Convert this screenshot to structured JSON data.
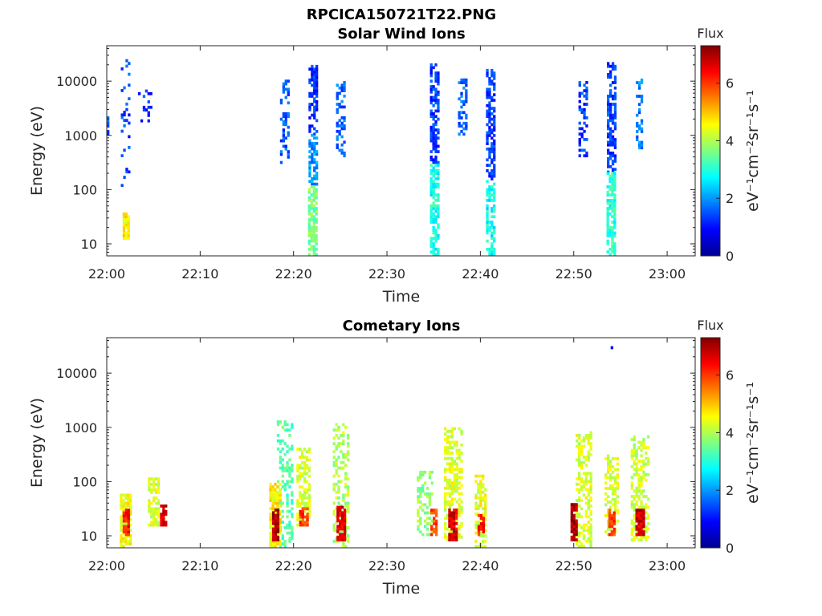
{
  "figure_title": "RPCICA150721T22.PNG",
  "chart_data": [
    {
      "type": "heatmap",
      "title": "Solar Wind Ions",
      "xlabel": "Time",
      "ylabel": "Energy (eV)",
      "x_ticks": [
        "22:00",
        "22:10",
        "22:20",
        "22:30",
        "22:40",
        "22:50",
        "23:00"
      ],
      "x_range": [
        "22:00",
        "23:03"
      ],
      "y_scale": "log",
      "y_ticks": [
        10,
        100,
        1000,
        10000
      ],
      "y_tick_labels": [
        "10",
        "100",
        "1000",
        "10000"
      ],
      "y_range": [
        6,
        45000
      ],
      "colorbar": {
        "title": "Flux",
        "label": "eV⁻¹cm⁻²sr⁻¹s⁻¹",
        "range": [
          0,
          7.3
        ],
        "ticks": [
          "0",
          "2",
          "4",
          "6"
        ],
        "colormap": "jet"
      },
      "blobs": [
        {
          "t": "22:02",
          "w": 0.6,
          "emin": 12,
          "emax": 35,
          "flux": 4.6,
          "p": 0.9
        },
        {
          "t": "22:00",
          "w": 0.3,
          "emin": 1000,
          "emax": 2500,
          "flux": 1.6,
          "p": 0.5
        },
        {
          "t": "22:02",
          "w": 1.0,
          "emin": 90,
          "emax": 25000,
          "flux": 1.4,
          "p": 0.2
        },
        {
          "t": "22:04",
          "w": 1.3,
          "emin": 1400,
          "emax": 7000,
          "flux": 1.3,
          "p": 0.12
        },
        {
          "t": "22:19",
          "w": 0.9,
          "emin": 300,
          "emax": 10000,
          "flux": 1.5,
          "p": 0.35
        },
        {
          "t": "22:22",
          "w": 0.8,
          "emin": 1000,
          "emax": 18000,
          "flux": 1.2,
          "p": 0.6
        },
        {
          "t": "22:22",
          "w": 0.8,
          "emin": 120,
          "emax": 1000,
          "flux": 2.0,
          "p": 0.65
        },
        {
          "t": "22:22",
          "w": 0.9,
          "emin": 6,
          "emax": 110,
          "flux": 3.6,
          "p": 0.75
        },
        {
          "t": "22:25",
          "w": 0.9,
          "emin": 400,
          "emax": 9000,
          "flux": 1.6,
          "p": 0.4
        },
        {
          "t": "22:35",
          "w": 0.8,
          "emin": 300,
          "emax": 20000,
          "flux": 1.3,
          "p": 0.65
        },
        {
          "t": "22:35",
          "w": 0.8,
          "emin": 6,
          "emax": 300,
          "flux": 2.9,
          "p": 0.7
        },
        {
          "t": "22:38",
          "w": 0.8,
          "emin": 1000,
          "emax": 10000,
          "flux": 1.6,
          "p": 0.45
        },
        {
          "t": "22:41",
          "w": 0.8,
          "emin": 150,
          "emax": 15000,
          "flux": 1.3,
          "p": 0.6
        },
        {
          "t": "22:41",
          "w": 0.8,
          "emin": 6,
          "emax": 150,
          "flux": 2.8,
          "p": 0.6
        },
        {
          "t": "22:51",
          "w": 1.0,
          "emin": 400,
          "emax": 10000,
          "flux": 1.3,
          "p": 0.4
        },
        {
          "t": "22:54",
          "w": 0.9,
          "emin": 200,
          "emax": 20000,
          "flux": 1.3,
          "p": 0.65
        },
        {
          "t": "22:54",
          "w": 1.0,
          "emin": 6,
          "emax": 200,
          "flux": 3.0,
          "p": 0.7
        },
        {
          "t": "22:57",
          "w": 0.7,
          "emin": 500,
          "emax": 10000,
          "flux": 1.8,
          "p": 0.45
        }
      ]
    },
    {
      "type": "heatmap",
      "title": "Cometary Ions",
      "xlabel": "Time",
      "ylabel": "Energy (eV)",
      "x_ticks": [
        "22:00",
        "22:10",
        "22:20",
        "22:30",
        "22:40",
        "22:50",
        "23:00"
      ],
      "x_range": [
        "22:00",
        "23:03"
      ],
      "y_scale": "log",
      "y_ticks": [
        10,
        100,
        1000,
        10000
      ],
      "y_tick_labels": [
        "10",
        "100",
        "1000",
        "10000"
      ],
      "y_range": [
        6,
        45000
      ],
      "colorbar": {
        "title": "Flux",
        "label": "eV⁻¹cm⁻²sr⁻¹s⁻¹",
        "range": [
          0,
          7.3
        ],
        "ticks": [
          "0",
          "2",
          "4",
          "6"
        ],
        "colormap": "jet"
      },
      "blobs": [
        {
          "t": "22:02",
          "w": 1.2,
          "emin": 6,
          "emax": 60,
          "flux": 4.5,
          "p": 0.8
        },
        {
          "t": "22:02",
          "w": 0.6,
          "emin": 10,
          "emax": 30,
          "flux": 6.3,
          "p": 0.8
        },
        {
          "t": "22:05",
          "w": 1.2,
          "emin": 15,
          "emax": 130,
          "flux": 4.3,
          "p": 0.7
        },
        {
          "t": "22:06",
          "w": 0.6,
          "emin": 15,
          "emax": 35,
          "flux": 6.6,
          "p": 0.85
        },
        {
          "t": "22:19",
          "w": 1.6,
          "emin": 6,
          "emax": 1200,
          "flux": 3.3,
          "p": 0.35
        },
        {
          "t": "22:18",
          "w": 1.2,
          "emin": 6,
          "emax": 90,
          "flux": 4.6,
          "p": 0.85
        },
        {
          "t": "22:18",
          "w": 0.6,
          "emin": 8,
          "emax": 30,
          "flux": 7.0,
          "p": 0.9
        },
        {
          "t": "22:21",
          "w": 1.4,
          "emin": 15,
          "emax": 400,
          "flux": 4.3,
          "p": 0.5
        },
        {
          "t": "22:21",
          "w": 0.8,
          "emin": 15,
          "emax": 30,
          "flux": 6.0,
          "p": 0.8
        },
        {
          "t": "22:25",
          "w": 1.6,
          "emin": 6,
          "emax": 1100,
          "flux": 4.0,
          "p": 0.45
        },
        {
          "t": "22:25",
          "w": 0.8,
          "emin": 8,
          "emax": 35,
          "flux": 6.6,
          "p": 0.85
        },
        {
          "t": "22:34",
          "w": 1.6,
          "emin": 10,
          "emax": 150,
          "flux": 3.8,
          "p": 0.45
        },
        {
          "t": "22:35",
          "w": 0.7,
          "emin": 10,
          "emax": 30,
          "flux": 5.9,
          "p": 0.75
        },
        {
          "t": "22:37",
          "w": 1.8,
          "emin": 8,
          "emax": 900,
          "flux": 4.3,
          "p": 0.5
        },
        {
          "t": "22:37",
          "w": 0.9,
          "emin": 8,
          "emax": 30,
          "flux": 6.6,
          "p": 0.9
        },
        {
          "t": "22:40",
          "w": 1.2,
          "emin": 6,
          "emax": 120,
          "flux": 4.4,
          "p": 0.55
        },
        {
          "t": "22:40",
          "w": 0.6,
          "emin": 10,
          "emax": 25,
          "flux": 6.2,
          "p": 0.8
        },
        {
          "t": "22:51",
          "w": 1.6,
          "emin": 6,
          "emax": 800,
          "flux": 4.3,
          "p": 0.45
        },
        {
          "t": "22:50",
          "w": 0.7,
          "emin": 8,
          "emax": 40,
          "flux": 7.0,
          "p": 0.85
        },
        {
          "t": "22:54",
          "w": 1.4,
          "emin": 10,
          "emax": 300,
          "flux": 4.3,
          "p": 0.5
        },
        {
          "t": "22:54",
          "w": 0.6,
          "emin": 10,
          "emax": 30,
          "flux": 6.0,
          "p": 0.75
        },
        {
          "t": "22:57",
          "w": 1.8,
          "emin": 8,
          "emax": 700,
          "flux": 4.2,
          "p": 0.5
        },
        {
          "t": "22:57",
          "w": 0.8,
          "emin": 10,
          "emax": 30,
          "flux": 6.7,
          "p": 0.85
        },
        {
          "t": "22:54",
          "w": 0.1,
          "emin": 28000,
          "emax": 30000,
          "flux": 0.6,
          "p": 1.0
        }
      ]
    }
  ]
}
